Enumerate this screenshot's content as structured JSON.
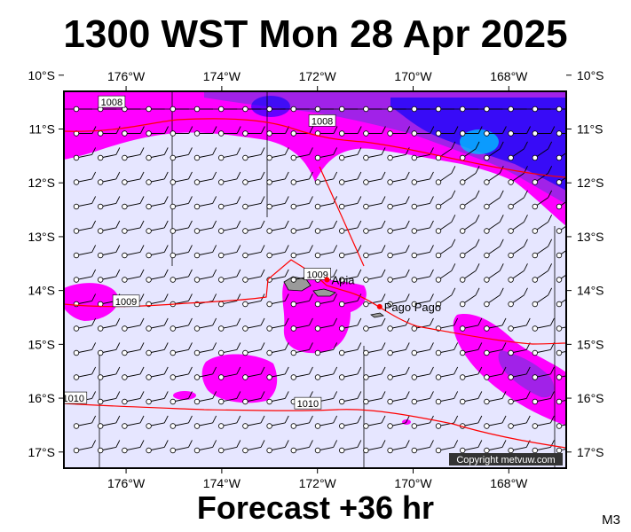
{
  "header": {
    "title": "1300 WST Mon 28 Apr 2025"
  },
  "footer": {
    "forecast": "Forecast +36 hr",
    "model": "M3"
  },
  "map": {
    "lon_range": [
      -177.3,
      -166.8
    ],
    "lat_range": [
      -17.3,
      -10.3
    ],
    "lon_ticks": [
      "176°W",
      "174°W",
      "172°W",
      "170°W",
      "168°W"
    ],
    "lon_tick_values": [
      -176,
      -174,
      -172,
      -170,
      -168
    ],
    "lat_ticks": [
      "10°S",
      "11°S",
      "12°S",
      "13°S",
      "14°S",
      "15°S",
      "16°S",
      "17°S"
    ],
    "lat_tick_values": [
      -10,
      -11,
      -12,
      -13,
      -14,
      -15,
      -16,
      -17
    ],
    "places": [
      {
        "name": "Apia",
        "lon": -171.8,
        "lat": -13.8
      },
      {
        "name": "Pago Pago",
        "lon": -170.7,
        "lat": -14.3
      }
    ],
    "isobars": [
      {
        "label": "1008",
        "lon": -176.3,
        "lat": -10.5
      },
      {
        "label": "1008",
        "lon": -171.9,
        "lat": -10.85
      },
      {
        "label": "1009",
        "lon": -172.0,
        "lat": -13.7
      },
      {
        "label": "1009",
        "lon": -176.0,
        "lat": -14.2
      },
      {
        "label": "1010",
        "lon": -172.2,
        "lat": -16.1
      },
      {
        "label": "1010",
        "lon": -177.1,
        "lat": -16.0
      }
    ],
    "copyright": "Copyright metvuw.com",
    "colors": {
      "land": "#9a9a9a",
      "rain_light": "#ff00ff",
      "rain_moderate": "#8a2be2",
      "rain_heavy": "#0000ff",
      "isobar": "#ff0000",
      "cloud": "#e6e6ff"
    }
  }
}
